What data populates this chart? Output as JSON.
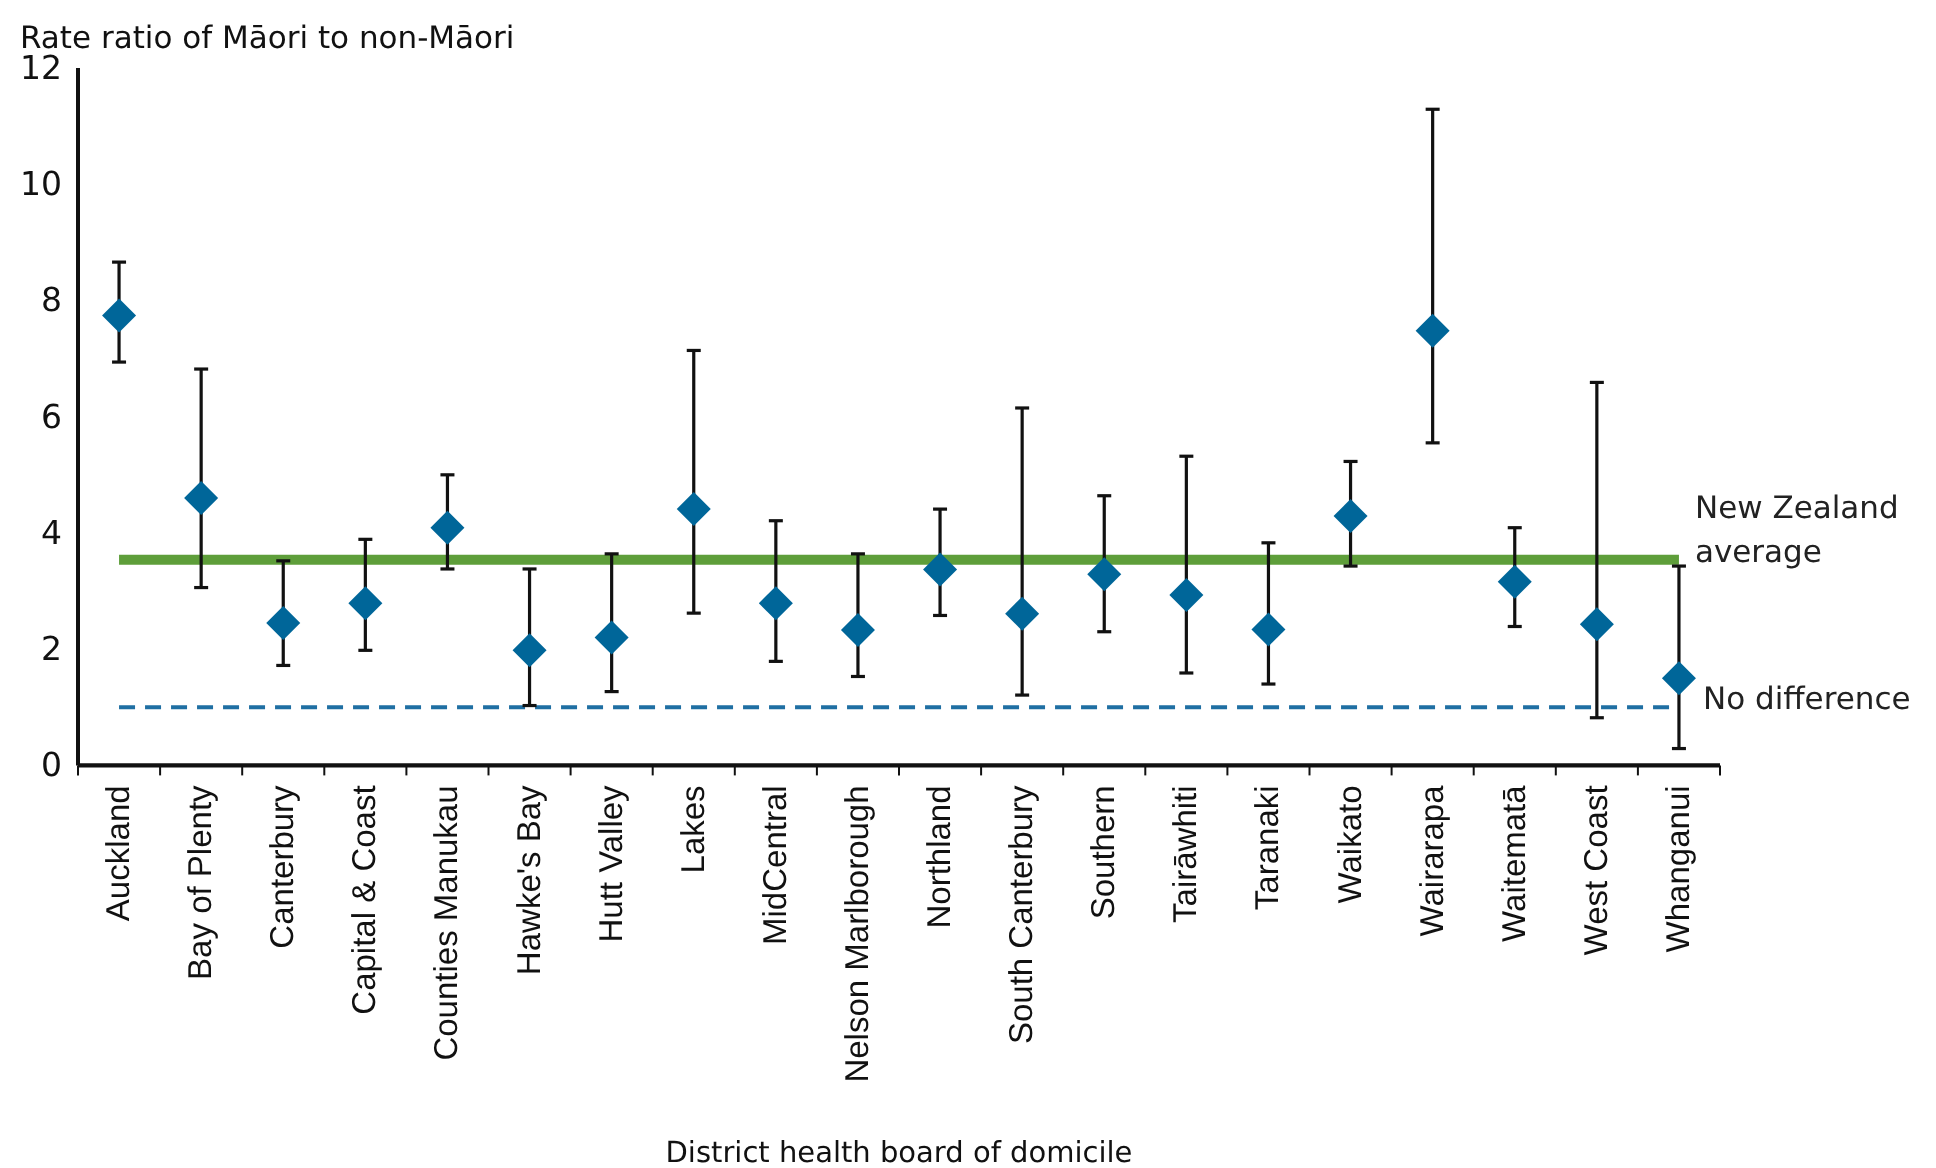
{
  "chart_data": {
    "type": "scatter",
    "ylabel": "Rate ratio of Māori to non-Māori",
    "xlabel": "District health board of domicile",
    "categories": [
      "Auckland",
      "Bay of Plenty",
      "Canterbury",
      "Capital & Coast",
      "Counties Manukau",
      "Hawke's Bay",
      "Hutt Valley",
      "Lakes",
      "MidCentral",
      "Nelson Marlborough",
      "Northland",
      "South Canterbury",
      "Southern",
      "Tairāwhiti",
      "Taranaki",
      "Waikato",
      "Wairarapa",
      "Waitematā",
      "West Coast",
      "Whanganui"
    ],
    "values": [
      7.74,
      4.6,
      2.45,
      2.79,
      4.09,
      1.98,
      2.2,
      4.41,
      2.79,
      2.33,
      3.37,
      2.61,
      3.29,
      2.93,
      2.34,
      4.29,
      7.48,
      3.16,
      2.43,
      1.5
    ],
    "errors": [
      [
        6.94,
        8.66
      ],
      [
        3.06,
        6.82
      ],
      [
        1.72,
        3.52
      ],
      [
        1.98,
        3.89
      ],
      [
        3.38,
        5.0
      ],
      [
        1.03,
        3.38
      ],
      [
        1.27,
        3.64
      ],
      [
        2.62,
        7.14
      ],
      [
        1.79,
        4.21
      ],
      [
        1.53,
        3.64
      ],
      [
        2.58,
        4.41
      ],
      [
        1.21,
        6.15
      ],
      [
        2.3,
        4.64
      ],
      [
        1.59,
        5.32
      ],
      [
        1.4,
        3.83
      ],
      [
        3.43,
        5.23
      ],
      [
        5.55,
        11.29
      ],
      [
        2.39,
        4.09
      ],
      [
        0.82,
        6.59
      ],
      [
        0.29,
        3.43
      ]
    ],
    "color": "#006699",
    "marker": "diamond",
    "ylim": [
      0,
      12
    ],
    "yticks": [
      0,
      2,
      4,
      6,
      8,
      10,
      12
    ],
    "ref_lines": [
      {
        "axis": "y",
        "value": 3.54,
        "label": "New Zealand average",
        "color": "#5e9e3a",
        "line_style": "solid"
      },
      {
        "axis": "y",
        "value": 1,
        "label": "No difference",
        "color": "#1f6fa3",
        "line_style": "dashed"
      }
    ]
  }
}
